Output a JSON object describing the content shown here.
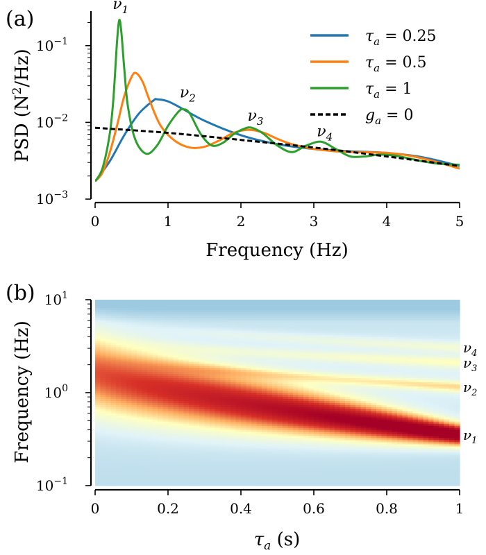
{
  "chart_data": [
    {
      "panel": "(a)",
      "type": "line",
      "xlabel": "Frequency (Hz)",
      "ylabel_main": "PSD (N",
      "ylabel_sup": "2",
      "ylabel_tail": "/Hz)",
      "xlim": [
        0,
        5
      ],
      "ylim_log10": [
        -3,
        -0.55
      ],
      "x_ticks": [
        0,
        1,
        2,
        3,
        4,
        5
      ],
      "y_ticks": [
        {
          "base": "10",
          "exp": "−1",
          "log": -1
        },
        {
          "base": "10",
          "exp": "−2",
          "log": -2
        },
        {
          "base": "10",
          "exp": "−3",
          "log": -3
        }
      ],
      "series": [
        {
          "name": "τa = 0.25",
          "sym": "τ",
          "sub": "a",
          "rest": " = 0.25",
          "color": "#1f77b4",
          "dash": "",
          "x": [
            0,
            0.2,
            0.4,
            0.6,
            0.8,
            0.85,
            1.0,
            1.2,
            1.5,
            2.0,
            2.5,
            3.0,
            3.5,
            4.0,
            4.5,
            5.0
          ],
          "y": [
            0.0017,
            0.0031,
            0.0068,
            0.013,
            0.0193,
            0.02,
            0.0188,
            0.015,
            0.0105,
            0.0068,
            0.0052,
            0.0045,
            0.0042,
            0.004,
            0.0035,
            0.0027
          ]
        },
        {
          "name": "τa = 0.5",
          "sym": "τ",
          "sub": "a",
          "rest": " = 0.5",
          "color": "#ff7f0e",
          "dash": "",
          "x": [
            0,
            0.1,
            0.2,
            0.3,
            0.4,
            0.5,
            0.56,
            0.65,
            0.75,
            0.9,
            1.1,
            1.3,
            1.5,
            1.7,
            1.9,
            2.1,
            2.3,
            2.5,
            2.7,
            3.0,
            3.3,
            3.6,
            4.0,
            4.3,
            4.6,
            5.0
          ],
          "y": [
            0.0017,
            0.0022,
            0.004,
            0.009,
            0.022,
            0.039,
            0.044,
            0.034,
            0.019,
            0.009,
            0.0057,
            0.0047,
            0.0048,
            0.0058,
            0.0073,
            0.008,
            0.0074,
            0.0061,
            0.0052,
            0.0045,
            0.0042,
            0.0041,
            0.004,
            0.0037,
            0.0032,
            0.0025
          ]
        },
        {
          "name": "τa = 1",
          "sym": "τ",
          "sub": "a",
          "rest": " = 1",
          "color": "#2ca02c",
          "dash": "",
          "x": [
            0,
            0.1,
            0.2,
            0.25,
            0.3,
            0.33,
            0.36,
            0.4,
            0.45,
            0.55,
            0.7,
            0.85,
            1.0,
            1.15,
            1.22,
            1.3,
            1.45,
            1.6,
            1.75,
            1.9,
            2.05,
            2.15,
            2.3,
            2.5,
            2.7,
            2.9,
            3.1,
            3.3,
            3.5,
            3.7,
            3.9,
            4.1,
            4.3,
            4.5,
            4.7,
            5.0
          ],
          "y": [
            0.0017,
            0.0025,
            0.007,
            0.02,
            0.11,
            0.215,
            0.15,
            0.05,
            0.016,
            0.006,
            0.0039,
            0.005,
            0.009,
            0.014,
            0.0148,
            0.013,
            0.007,
            0.005,
            0.0054,
            0.007,
            0.0083,
            0.0085,
            0.0072,
            0.005,
            0.0041,
            0.005,
            0.0056,
            0.0045,
            0.0036,
            0.0036,
            0.0038,
            0.0037,
            0.0034,
            0.0031,
            0.0029,
            0.0028
          ]
        },
        {
          "name": "ga = 0",
          "sym": "g",
          "sub": "a",
          "rest": " = 0",
          "color": "#000000",
          "dash": "7,4",
          "x": [
            0,
            1,
            2,
            3,
            4,
            5
          ],
          "y": [
            0.0085,
            0.0073,
            0.0059,
            0.0047,
            0.0036,
            0.0027
          ]
        }
      ],
      "annotations": [
        {
          "sym": "ν",
          "sub": "1",
          "x": 0.35,
          "y": 0.3
        },
        {
          "sym": "ν",
          "sub": "2",
          "x": 1.27,
          "y": 0.021
        },
        {
          "sym": "ν",
          "sub": "3",
          "x": 2.2,
          "y": 0.0105
        },
        {
          "sym": "ν",
          "sub": "4",
          "x": 3.15,
          "y": 0.0066
        }
      ]
    },
    {
      "panel": "(b)",
      "type": "heatmap",
      "xlabel_sym": "τ",
      "xlabel_sub": "a",
      "xlabel_rest": " (s)",
      "ylabel": "Frequency (Hz)",
      "xlim": [
        0,
        1
      ],
      "ylim_log10": [
        -1,
        1
      ],
      "x_ticks": [
        {
          "label": "0",
          "v": 0
        },
        {
          "label": "0.2",
          "v": 0.2
        },
        {
          "label": "0.4",
          "v": 0.4
        },
        {
          "label": "0.6",
          "v": 0.6
        },
        {
          "label": "0.8",
          "v": 0.8
        },
        {
          "label": "1",
          "v": 1
        }
      ],
      "y_ticks": [
        {
          "base": "10",
          "exp": "1",
          "log": 1
        },
        {
          "base": "10",
          "exp": "0",
          "log": 0
        },
        {
          "base": "10",
          "exp": "−1",
          "log": -1
        }
      ],
      "colormap": [
        "#9ecae1",
        "#e0f3f8",
        "#ffffbf",
        "#fdae61",
        "#d73027",
        "#a50026"
      ],
      "ridges": [
        {
          "label_sym": "ν",
          "label_sub": "1",
          "f_at_tau1": 0.35
        },
        {
          "label_sym": "ν",
          "label_sub": "2",
          "f_at_tau1": 1.15
        },
        {
          "label_sym": "ν",
          "label_sub": "3",
          "f_at_tau1": 2.1
        },
        {
          "label_sym": "ν",
          "label_sub": "4",
          "f_at_tau1": 3.05
        }
      ]
    }
  ]
}
